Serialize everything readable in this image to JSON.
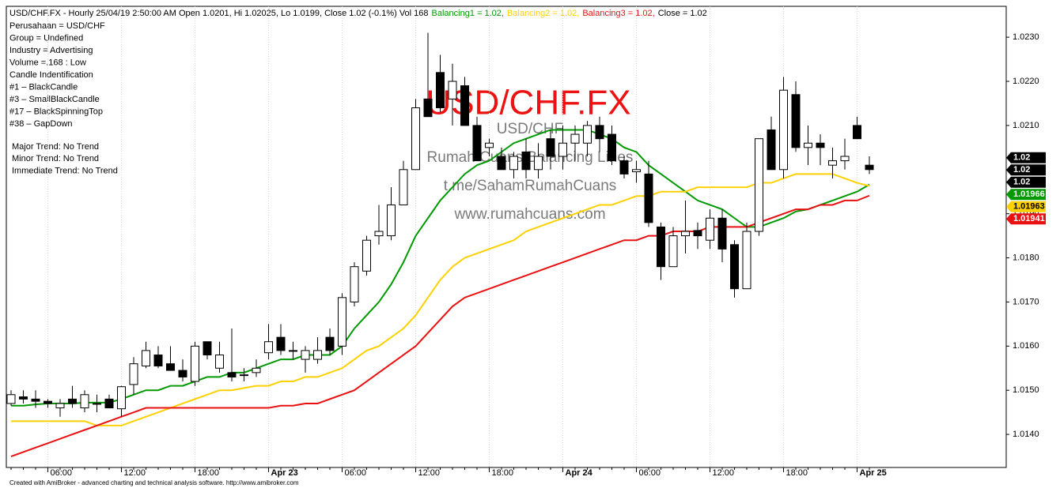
{
  "chart_data": {
    "type": "candlestick",
    "title": "USD/CHF.FX - Hourly 25/04/19 2:50:00 AM Open 1.0201, Hi 1.02025, Lo 1.0199, Close 1.02 (-0.1%) Vol 168",
    "close_text": "Close = 1.02",
    "info_lines": [
      "Perusahaan = USD/CHF",
      "Group = Undefined",
      "Industry = Advertising",
      "Volume  =.168 : Low",
      " Candle Indentification",
      "#1 – BlackCandle",
      "#3 – SmallBlackCandle",
      "#17 – BlackSpinningTop",
      "#38 – GapDown"
    ],
    "trend_lines": [
      "Major Trend:  No Trend",
      "Minor Trend:  No Trend",
      "Immediate Trend:  No Trend"
    ],
    "watermark": {
      "symbol": "USD/CHF.FX",
      "lines": [
        "USD/CHF",
        "Rumah Cuans Balancing Lines",
        "t.me/SahamRumahCuans",
        "www.rumahcuans.com"
      ]
    },
    "footer": "Created with AmiBroker - advanced charting and technical analysis software. http://www.amibroker.com",
    "categories": [
      null,
      null,
      null,
      "06:00",
      null,
      null,
      null,
      null,
      null,
      "12:00",
      null,
      null,
      null,
      null,
      null,
      "18:00",
      null,
      null,
      null,
      null,
      null,
      "Apr 23",
      null,
      null,
      null,
      null,
      null,
      "06:00",
      null,
      null,
      null,
      null,
      null,
      "12:00",
      null,
      null,
      null,
      null,
      null,
      "18:00",
      null,
      null,
      null,
      null,
      null,
      "Apr 24",
      null,
      null,
      null,
      null,
      null,
      "06:00",
      null,
      null,
      null,
      null,
      null,
      "12:00",
      null,
      null,
      null,
      null,
      null,
      "18:00",
      null,
      null,
      null,
      null,
      null,
      "Apr 25",
      null
    ],
    "ohlc": [
      [
        1.0147,
        1.015,
        1.01465,
        1.0149
      ],
      [
        1.01485,
        1.015,
        1.0147,
        1.0148
      ],
      [
        1.0148,
        1.015,
        1.0146,
        1.01475
      ],
      [
        1.01475,
        1.0148,
        1.0146,
        1.0147
      ],
      [
        1.0146,
        1.0148,
        1.0144,
        1.0147
      ],
      [
        1.0148,
        1.0151,
        1.0146,
        1.0147
      ],
      [
        1.0146,
        1.015,
        1.0145,
        1.0149
      ],
      [
        1.0147,
        1.0149,
        1.0145,
        1.0147
      ],
      [
        1.0148,
        1.0149,
        1.0146,
        1.0146
      ],
      [
        1.01458,
        1.0151,
        1.0144,
        1.01508
      ],
      [
        1.01513,
        1.01575,
        1.0149,
        1.0156
      ],
      [
        1.01555,
        1.0161,
        1.0155,
        1.0159
      ],
      [
        1.0158,
        1.016,
        1.0155,
        1.01555
      ],
      [
        1.0156,
        1.016,
        1.0155,
        1.01545
      ],
      [
        1.01545,
        1.0157,
        1.0152,
        1.0153
      ],
      [
        1.0152,
        1.0161,
        1.0151,
        1.016
      ],
      [
        1.0161,
        1.0161,
        1.0157,
        1.0158
      ],
      [
        1.0155,
        1.0161,
        1.0154,
        1.0158
      ],
      [
        1.0154,
        1.0164,
        1.0152,
        1.0153
      ],
      [
        1.01535,
        1.0155,
        1.0152,
        1.01535
      ],
      [
        1.0154,
        1.0157,
        1.0153,
        1.0155
      ],
      [
        1.01585,
        1.0165,
        1.0157,
        1.0161
      ],
      [
        1.0162,
        1.0165,
        1.0158,
        1.0159
      ],
      [
        1.0159,
        1.0161,
        1.0157,
        1.0159
      ],
      [
        1.0157,
        1.016,
        1.0154,
        1.0159
      ],
      [
        1.0157,
        1.0162,
        1.0156,
        1.0159
      ],
      [
        1.0162,
        1.0164,
        1.0158,
        1.0159
      ],
      [
        1.016,
        1.0172,
        1.0158,
        1.0171
      ],
      [
        1.017,
        1.0179,
        1.0169,
        1.0178
      ],
      [
        1.0177,
        1.0185,
        1.0176,
        1.0184
      ],
      [
        1.0185,
        1.0192,
        1.0183,
        1.0186
      ],
      [
        1.0185,
        1.0196,
        1.0184,
        1.0192
      ],
      [
        1.0192,
        1.0202,
        1.0192,
        1.02
      ],
      [
        1.02,
        1.0216,
        1.02,
        1.0214
      ],
      [
        1.0216,
        1.0231,
        1.0212,
        1.0212
      ],
      [
        1.0222,
        1.0226,
        1.0213,
        1.0214
      ],
      [
        1.0216,
        1.0224,
        1.021,
        1.022
      ],
      [
        1.0219,
        1.0221,
        1.021,
        1.021
      ],
      [
        1.021,
        1.0212,
        1.0202,
        1.0202
      ],
      [
        1.0205,
        1.0207,
        1.0203,
        1.0206
      ],
      [
        1.0203,
        1.0205,
        1.02,
        1.02
      ],
      [
        1.02,
        1.0204,
        1.0198,
        1.0203
      ],
      [
        1.0204,
        1.0207,
        1.0198,
        1.02
      ],
      [
        1.02,
        1.0206,
        1.0198,
        1.0203
      ],
      [
        1.0207,
        1.0209,
        1.02,
        1.0203
      ],
      [
        1.0203,
        1.021,
        1.02,
        1.0206
      ],
      [
        1.0206,
        1.021,
        1.0202,
        1.0208
      ],
      [
        1.0206,
        1.0211,
        1.0203,
        1.021
      ],
      [
        1.021,
        1.0212,
        1.0204,
        1.0207
      ],
      [
        1.0208,
        1.021,
        1.0201,
        1.0202
      ],
      [
        1.0202,
        1.0203,
        1.0198,
        1.0199
      ],
      [
        1.01995,
        1.0202,
        1.0197,
        1.02
      ],
      [
        1.0199,
        1.0202,
        1.0187,
        1.0188
      ],
      [
        1.0187,
        1.0188,
        1.0175,
        1.0178
      ],
      [
        1.0178,
        1.0187,
        1.0178,
        1.0185
      ],
      [
        1.0185,
        1.0193,
        1.0181,
        1.0186
      ],
      [
        1.01862,
        1.0188,
        1.0182,
        1.0185
      ],
      [
        1.0184,
        1.0191,
        1.0182,
        1.0189
      ],
      [
        1.0189,
        1.0191,
        1.0179,
        1.0182
      ],
      [
        1.0183,
        1.0184,
        1.0171,
        1.0173
      ],
      [
        1.0173,
        1.0188,
        1.0173,
        1.0186
      ],
      [
        1.0186,
        1.0207,
        1.0185,
        1.0207
      ],
      [
        1.0209,
        1.0212,
        1.02,
        1.02
      ],
      [
        1.02,
        1.0221,
        1.0198,
        1.0218
      ],
      [
        1.0217,
        1.022,
        1.0204,
        1.0205
      ],
      [
        1.0205,
        1.021,
        1.0201,
        1.0206
      ],
      [
        1.0206,
        1.0208,
        1.0201,
        1.0205
      ],
      [
        1.0201,
        1.0205,
        1.0198,
        1.0202
      ],
      [
        1.0202,
        1.0207,
        1.02,
        1.0203
      ],
      [
        1.021,
        1.0212,
        1.0207,
        1.0207
      ],
      [
        1.0201,
        1.0203,
        1.0199,
        1.02
      ]
    ],
    "series": [
      {
        "name": "Balancing1",
        "legend_label": "= 1.02,",
        "color": "#009900",
        "values": [
          1.01465,
          1.01465,
          1.01468,
          1.0147,
          1.0147,
          1.0147,
          1.01472,
          1.01472,
          1.01472,
          1.0148,
          1.0149,
          1.015,
          1.015,
          1.0151,
          1.0151,
          1.0152,
          1.0153,
          1.0153,
          1.0154,
          1.0154,
          1.0155,
          1.0156,
          1.0157,
          1.0157,
          1.0158,
          1.0158,
          1.0158,
          1.016,
          1.0164,
          1.0167,
          1.017,
          1.0174,
          1.0179,
          1.0185,
          1.0189,
          1.0193,
          1.0196,
          1.0199,
          1.0201,
          1.0202,
          1.0204,
          1.0206,
          1.0207,
          1.0208,
          1.0209,
          1.0209,
          1.0209,
          1.0209,
          1.0208,
          1.0207,
          1.0205,
          1.0204,
          1.0201,
          1.0199,
          1.0197,
          1.0195,
          1.0193,
          1.0192,
          1.0191,
          1.0189,
          1.0187,
          1.0187,
          1.0188,
          1.0189,
          1.01905,
          1.0191,
          1.0192,
          1.0193,
          1.0194,
          1.0195,
          1.01966
        ]
      },
      {
        "name": "Balancing2",
        "legend_label": "= 1.02,",
        "color": "#ffd000",
        "values": [
          1.0143,
          1.0143,
          1.0143,
          1.0143,
          1.0143,
          1.0143,
          1.0143,
          1.0142,
          1.0142,
          1.0142,
          1.0143,
          1.0144,
          1.0145,
          1.0146,
          1.0147,
          1.0148,
          1.0149,
          1.015,
          1.015,
          1.01505,
          1.0151,
          1.0151,
          1.0152,
          1.0152,
          1.0153,
          1.0153,
          1.0154,
          1.0155,
          1.0157,
          1.0159,
          1.016,
          1.0162,
          1.0164,
          1.0167,
          1.0171,
          1.0175,
          1.0178,
          1.018,
          1.0181,
          1.0182,
          1.0183,
          1.0184,
          1.0186,
          1.0187,
          1.0188,
          1.0189,
          1.019,
          1.0191,
          1.0192,
          1.0192,
          1.0193,
          1.0194,
          1.0194,
          1.0195,
          1.0195,
          1.0195,
          1.0196,
          1.0196,
          1.0196,
          1.0196,
          1.0196,
          1.0197,
          1.0197,
          1.0198,
          1.0199,
          1.0199,
          1.0199,
          1.0199,
          1.0198,
          1.0197,
          1.01963
        ]
      },
      {
        "name": "Balancing3",
        "legend_label": "= 1.02,",
        "color": "#e81010",
        "values": [
          1.0135,
          1.0136,
          1.0137,
          1.0138,
          1.0139,
          1.014,
          1.0141,
          1.0142,
          1.0143,
          1.0144,
          1.0145,
          1.0146,
          1.0146,
          1.0146,
          1.0146,
          1.0146,
          1.0146,
          1.0146,
          1.0146,
          1.0146,
          1.0146,
          1.0146,
          1.01465,
          1.01465,
          1.0147,
          1.0147,
          1.0148,
          1.0149,
          1.015,
          1.0152,
          1.0154,
          1.0156,
          1.0158,
          1.016,
          1.0163,
          1.0166,
          1.0169,
          1.0171,
          1.0172,
          1.0173,
          1.0174,
          1.0175,
          1.0176,
          1.0177,
          1.0178,
          1.0179,
          1.018,
          1.0181,
          1.0182,
          1.0183,
          1.0184,
          1.0184,
          1.0185,
          1.0185,
          1.0186,
          1.0186,
          1.0186,
          1.0187,
          1.0187,
          1.0187,
          1.0187,
          1.0188,
          1.0189,
          1.019,
          1.0191,
          1.0191,
          1.0192,
          1.0192,
          1.0193,
          1.0193,
          1.01941
        ]
      }
    ],
    "price_badges": [
      {
        "value": 1.02,
        "color": "#000000",
        "text_color": "#ffffff"
      },
      {
        "value": 1.02,
        "color": "#000000",
        "text_color": "#ffffff"
      },
      {
        "value": 1.02,
        "color": "#000000",
        "text_color": "#ffffff"
      },
      {
        "value": 1.01966,
        "color": "#009900",
        "text_color": "#ffffff"
      },
      {
        "value": 1.01963,
        "color": "#ffd000",
        "text_color": "#000000"
      },
      {
        "value": 1.01941,
        "color": "#e81010",
        "text_color": "#ffffff"
      }
    ],
    "ylim": [
      1.01325,
      1.0237
    ],
    "yticks": [
      {
        "value": 1.014,
        "label": "1.0140"
      },
      {
        "value": 1.015,
        "label": "1.0150"
      },
      {
        "value": 1.016,
        "label": "1.0160"
      },
      {
        "value": 1.017,
        "label": "1.0170"
      },
      {
        "value": 1.018,
        "label": "1.0180"
      },
      {
        "value": 1.019,
        "label": "1.0190"
      },
      {
        "value": 1.02,
        "label": "1.0200"
      },
      {
        "value": 1.021,
        "label": "1.0210"
      },
      {
        "value": 1.022,
        "label": "1.0220"
      },
      {
        "value": 1.023,
        "label": "1.0230"
      }
    ],
    "up_color": "#ffffff",
    "down_color": "#000000",
    "grid": true
  }
}
